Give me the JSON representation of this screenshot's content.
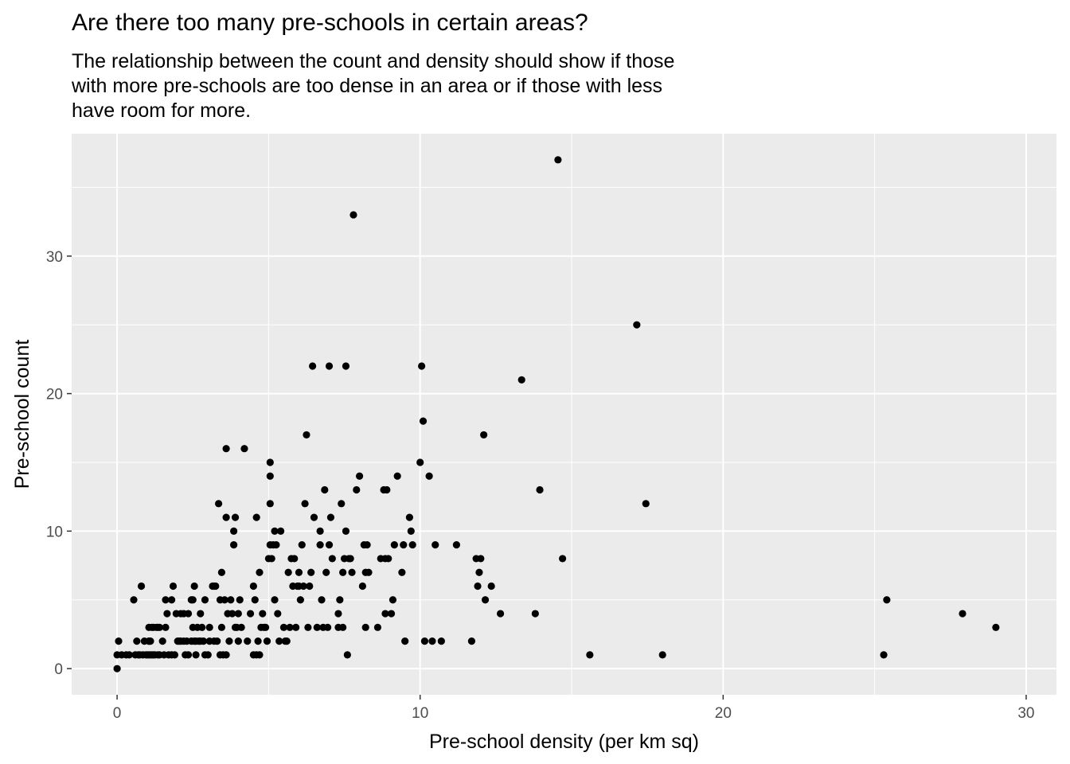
{
  "chart_data": {
    "type": "scatter",
    "title": "Are there too many pre-schools in certain areas?",
    "subtitle": "The relationship between the count and density should show if those\n with more pre-schools are too dense in an area or if those with less\n have room for more.",
    "xlabel": "Pre-school density (per km sq)",
    "ylabel": "Pre-school count",
    "xlim": [
      -1.5,
      31
    ],
    "ylim": [
      -1.9,
      38.9
    ],
    "x_ticks": [
      0,
      10,
      20,
      30
    ],
    "y_ticks": [
      0,
      10,
      20,
      30
    ],
    "grid": true,
    "panel_color": "#EBEBEB",
    "gridline_color": "#FFFFFF",
    "point_color": "#000000",
    "series": [
      {
        "points": [
          [
            0,
            0
          ],
          [
            0,
            1
          ],
          [
            0.05,
            2
          ],
          [
            0.15,
            1
          ],
          [
            0.3,
            1
          ],
          [
            0.4,
            1
          ],
          [
            0.55,
            5
          ],
          [
            0.6,
            1
          ],
          [
            0.65,
            2
          ],
          [
            0.7,
            1
          ],
          [
            0.75,
            1
          ],
          [
            0.8,
            6
          ],
          [
            0.85,
            1
          ],
          [
            0.9,
            2
          ],
          [
            0.95,
            1
          ],
          [
            1.0,
            1
          ],
          [
            1.05,
            2
          ],
          [
            1.1,
            1
          ],
          [
            1.15,
            1
          ],
          [
            1.2,
            1
          ],
          [
            1.1,
            2
          ],
          [
            1.05,
            1
          ],
          [
            1.05,
            2
          ],
          [
            1.05,
            3
          ],
          [
            1.15,
            3
          ],
          [
            1.2,
            3
          ],
          [
            1.25,
            1
          ],
          [
            1.3,
            3
          ],
          [
            1.35,
            1
          ],
          [
            1.35,
            3
          ],
          [
            1.4,
            1
          ],
          [
            1.4,
            3
          ],
          [
            1.5,
            2
          ],
          [
            1.55,
            1
          ],
          [
            1.6,
            3
          ],
          [
            1.6,
            5
          ],
          [
            1.65,
            4
          ],
          [
            1.7,
            1
          ],
          [
            1.8,
            1
          ],
          [
            1.8,
            5
          ],
          [
            1.85,
            6
          ],
          [
            1.9,
            1
          ],
          [
            1.95,
            4
          ],
          [
            2.0,
            2
          ],
          [
            2.05,
            2
          ],
          [
            2.1,
            2
          ],
          [
            2.1,
            4
          ],
          [
            2.2,
            2
          ],
          [
            2.2,
            4
          ],
          [
            2.25,
            1
          ],
          [
            2.3,
            2
          ],
          [
            2.35,
            1
          ],
          [
            2.35,
            4
          ],
          [
            2.45,
            2
          ],
          [
            2.45,
            5
          ],
          [
            2.5,
            3
          ],
          [
            2.5,
            5
          ],
          [
            2.55,
            2
          ],
          [
            2.55,
            6
          ],
          [
            2.6,
            1
          ],
          [
            2.6,
            2
          ],
          [
            2.65,
            3
          ],
          [
            2.7,
            2
          ],
          [
            2.75,
            4
          ],
          [
            2.75,
            2
          ],
          [
            2.8,
            3
          ],
          [
            2.85,
            2
          ],
          [
            2.9,
            1
          ],
          [
            2.9,
            5
          ],
          [
            3.0,
            1
          ],
          [
            3.05,
            3
          ],
          [
            3.05,
            2
          ],
          [
            3.15,
            6
          ],
          [
            3.2,
            2
          ],
          [
            3.2,
            6
          ],
          [
            3.25,
            6
          ],
          [
            3.3,
            2
          ],
          [
            3.35,
            12
          ],
          [
            3.4,
            1
          ],
          [
            3.4,
            5
          ],
          [
            3.45,
            7
          ],
          [
            3.45,
            3
          ],
          [
            3.5,
            1
          ],
          [
            3.55,
            5
          ],
          [
            3.6,
            1
          ],
          [
            3.6,
            11
          ],
          [
            3.6,
            16
          ],
          [
            3.65,
            4
          ],
          [
            3.7,
            2
          ],
          [
            3.75,
            5
          ],
          [
            3.8,
            4
          ],
          [
            3.85,
            9
          ],
          [
            3.85,
            10
          ],
          [
            3.9,
            11
          ],
          [
            3.9,
            3
          ],
          [
            3.95,
            3
          ],
          [
            4.0,
            2
          ],
          [
            4.0,
            4
          ],
          [
            4.05,
            5
          ],
          [
            4.1,
            3
          ],
          [
            4.2,
            16
          ],
          [
            4.3,
            2
          ],
          [
            4.4,
            4
          ],
          [
            4.5,
            1
          ],
          [
            4.5,
            6
          ],
          [
            4.55,
            5
          ],
          [
            4.6,
            1
          ],
          [
            4.6,
            11
          ],
          [
            4.65,
            2
          ],
          [
            4.7,
            7
          ],
          [
            4.7,
            1
          ],
          [
            4.75,
            3
          ],
          [
            4.8,
            4
          ],
          [
            4.85,
            3
          ],
          [
            4.9,
            3
          ],
          [
            4.95,
            2
          ],
          [
            5.0,
            8
          ],
          [
            5.05,
            9
          ],
          [
            5.05,
            12
          ],
          [
            5.05,
            14
          ],
          [
            5.05,
            15
          ],
          [
            5.1,
            8
          ],
          [
            5.15,
            9
          ],
          [
            5.2,
            5
          ],
          [
            5.2,
            10
          ],
          [
            5.25,
            9
          ],
          [
            5.3,
            4
          ],
          [
            5.35,
            2
          ],
          [
            5.4,
            10
          ],
          [
            5.5,
            3
          ],
          [
            5.55,
            2
          ],
          [
            5.6,
            2
          ],
          [
            5.65,
            7
          ],
          [
            5.7,
            3
          ],
          [
            5.75,
            8
          ],
          [
            5.8,
            6
          ],
          [
            5.85,
            8
          ],
          [
            5.9,
            3
          ],
          [
            5.95,
            6
          ],
          [
            6.0,
            7
          ],
          [
            6.0,
            6
          ],
          [
            6.05,
            5
          ],
          [
            6.1,
            9
          ],
          [
            6.15,
            6
          ],
          [
            6.2,
            12
          ],
          [
            6.25,
            17
          ],
          [
            6.3,
            3
          ],
          [
            6.35,
            6
          ],
          [
            6.4,
            7
          ],
          [
            6.45,
            22
          ],
          [
            6.5,
            11
          ],
          [
            6.6,
            3
          ],
          [
            6.7,
            10
          ],
          [
            6.7,
            9
          ],
          [
            6.75,
            5
          ],
          [
            6.8,
            3
          ],
          [
            6.85,
            13
          ],
          [
            6.9,
            7
          ],
          [
            6.95,
            3
          ],
          [
            7.0,
            9
          ],
          [
            7.0,
            22
          ],
          [
            7.05,
            11
          ],
          [
            7.1,
            8
          ],
          [
            7.3,
            3
          ],
          [
            7.3,
            4
          ],
          [
            7.35,
            5
          ],
          [
            7.4,
            12
          ],
          [
            7.45,
            3
          ],
          [
            7.45,
            7
          ],
          [
            7.5,
            8
          ],
          [
            7.55,
            10
          ],
          [
            7.55,
            22
          ],
          [
            7.6,
            1
          ],
          [
            7.65,
            8
          ],
          [
            7.7,
            8
          ],
          [
            7.75,
            7
          ],
          [
            7.8,
            33
          ],
          [
            7.9,
            13
          ],
          [
            8.0,
            14
          ],
          [
            8.1,
            6
          ],
          [
            8.15,
            9
          ],
          [
            8.2,
            3
          ],
          [
            8.2,
            7
          ],
          [
            8.25,
            9
          ],
          [
            8.3,
            7
          ],
          [
            8.6,
            3
          ],
          [
            8.7,
            8
          ],
          [
            8.8,
            13
          ],
          [
            8.85,
            8
          ],
          [
            8.85,
            4
          ],
          [
            8.9,
            13
          ],
          [
            8.95,
            8
          ],
          [
            9.05,
            4
          ],
          [
            9.1,
            5
          ],
          [
            9.15,
            9
          ],
          [
            9.25,
            14
          ],
          [
            9.4,
            7
          ],
          [
            9.45,
            9
          ],
          [
            9.5,
            2
          ],
          [
            9.65,
            11
          ],
          [
            9.7,
            10
          ],
          [
            9.75,
            9
          ],
          [
            10.0,
            15
          ],
          [
            10.05,
            22
          ],
          [
            10.1,
            18
          ],
          [
            10.15,
            2
          ],
          [
            10.3,
            14
          ],
          [
            10.4,
            2
          ],
          [
            10.5,
            9
          ],
          [
            10.7,
            2
          ],
          [
            11.2,
            9
          ],
          [
            11.7,
            2
          ],
          [
            11.85,
            8
          ],
          [
            11.9,
            6
          ],
          [
            11.95,
            7
          ],
          [
            12.0,
            8
          ],
          [
            12.1,
            17
          ],
          [
            12.15,
            5
          ],
          [
            12.35,
            6
          ],
          [
            12.65,
            4
          ],
          [
            13.35,
            21
          ],
          [
            13.8,
            4
          ],
          [
            13.95,
            13
          ],
          [
            14.55,
            37
          ],
          [
            14.7,
            8
          ],
          [
            15.6,
            1
          ],
          [
            17.15,
            25
          ],
          [
            17.45,
            12
          ],
          [
            18.0,
            1
          ],
          [
            25.3,
            1
          ],
          [
            25.4,
            5
          ],
          [
            27.9,
            4
          ],
          [
            29.0,
            3
          ]
        ]
      }
    ]
  }
}
